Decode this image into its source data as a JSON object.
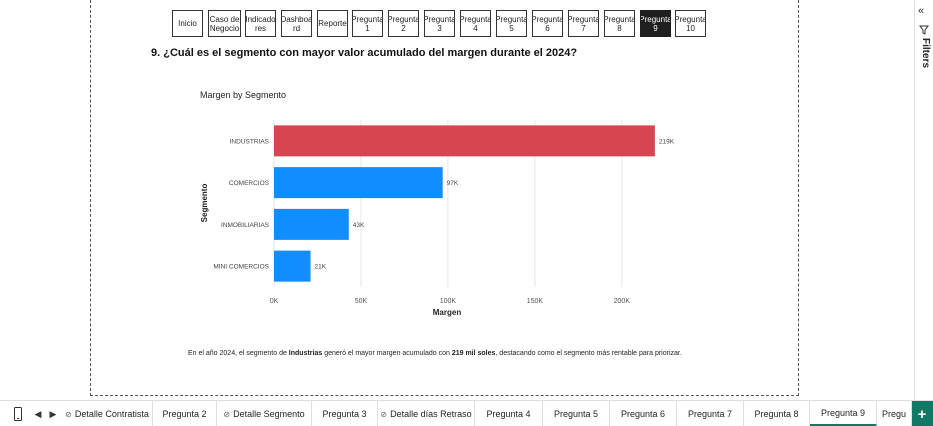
{
  "nav_buttons": [
    {
      "label": "Inicio",
      "active": false
    },
    {
      "label": "Caso de\nNegocio",
      "active": false
    },
    {
      "label": "Indicado\nres",
      "active": false
    },
    {
      "label": "Dashboa\nrd",
      "active": false
    },
    {
      "label": "Reporte",
      "active": false
    },
    {
      "label": "Pregunta\n1",
      "active": false
    },
    {
      "label": "Pregunta\n2",
      "active": false
    },
    {
      "label": "Pregunta\n3",
      "active": false
    },
    {
      "label": "Pregunta\n4",
      "active": false
    },
    {
      "label": "Pregunta\n5",
      "active": false
    },
    {
      "label": "Pregunta\n6",
      "active": false
    },
    {
      "label": "Pregunta\n7",
      "active": false
    },
    {
      "label": "Pregunta\n8",
      "active": false
    },
    {
      "label": "Pregunta\n9",
      "active": true
    },
    {
      "label": "Pregunta\n10",
      "active": false
    }
  ],
  "question": "9. ¿Cuál es el segmento con mayor valor acumulado del margen durante el 2024?",
  "chart_data": {
    "type": "bar",
    "orientation": "horizontal",
    "title": "Margen by Segmento",
    "xlabel": "Margen",
    "ylabel": "Segmento",
    "categories": [
      "INDUSTRIAS",
      "COMERCIOS",
      "INMOBILIARIAS",
      "MINI COMERCIOS"
    ],
    "values": [
      219000,
      97000,
      43000,
      21000
    ],
    "data_labels": [
      "219K",
      "97K",
      "43K",
      "21K"
    ],
    "colors": [
      "#D64550",
      "#118DFF",
      "#118DFF",
      "#118DFF"
    ],
    "xlim": [
      0,
      230000
    ],
    "xticks": [
      0,
      50000,
      100000,
      150000,
      200000
    ],
    "xtick_labels": [
      "0K",
      "50K",
      "100K",
      "150K",
      "200K"
    ],
    "grid": true
  },
  "conclusion": {
    "part1": "En el año 2024, el segmento de ",
    "bold1": "Industrias",
    "part2": " generó el mayor margen acumulado con ",
    "bold2": "219 mil soles",
    "part3": ", destacando como el segmento más rentable para priorizar."
  },
  "filters": {
    "label": "Filters",
    "collapse_icon": "double-chevron-left-icon",
    "filter_icon": "funnel-icon"
  },
  "tabbar": {
    "mobile_icon": "phone-icon",
    "prev_icon": "triangle-left-icon",
    "next_icon": "triangle-right-icon",
    "add_icon": "plus-icon",
    "tabs": [
      {
        "label": "Detalle Contratista",
        "hidden": true,
        "active": false
      },
      {
        "label": "Pregunta 2",
        "hidden": false,
        "active": false
      },
      {
        "label": "Detalle Segmento",
        "hidden": true,
        "active": false
      },
      {
        "label": "Pregunta 3",
        "hidden": false,
        "active": false
      },
      {
        "label": "Detalle días Retraso",
        "hidden": true,
        "active": false
      },
      {
        "label": "Pregunta 4",
        "hidden": false,
        "active": false
      },
      {
        "label": "Pregunta 5",
        "hidden": false,
        "active": false
      },
      {
        "label": "Pregunta 6",
        "hidden": false,
        "active": false
      },
      {
        "label": "Pregunta 7",
        "hidden": false,
        "active": false
      },
      {
        "label": "Pregunta 8",
        "hidden": false,
        "active": false
      },
      {
        "label": "Pregunta 9",
        "hidden": false,
        "active": true
      },
      {
        "label": "Pregu",
        "hidden": false,
        "active": false
      }
    ]
  }
}
